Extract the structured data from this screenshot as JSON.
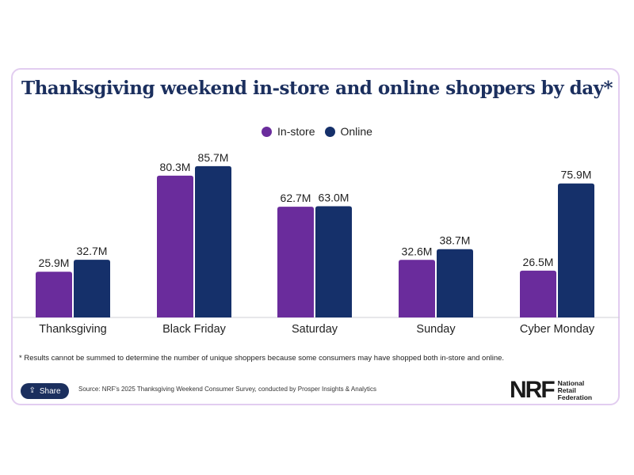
{
  "title": "Thanksgiving weekend in-store and online shoppers by day*",
  "legend": {
    "instore_label": "In-store",
    "online_label": "Online"
  },
  "colors": {
    "instore": "#6a2c9c",
    "online": "#15306a",
    "card_border": "#e2cdf0"
  },
  "chart_data": {
    "type": "bar",
    "categories": [
      "Thanksgiving",
      "Black Friday",
      "Saturday",
      "Sunday",
      "Cyber Monday"
    ],
    "series": [
      {
        "name": "In-store",
        "values": [
          25.9,
          80.3,
          62.7,
          32.6,
          26.5
        ],
        "labels": [
          "25.9M",
          "80.3M",
          "62.7M",
          "32.6M",
          "26.5M"
        ]
      },
      {
        "name": "Online",
        "values": [
          32.7,
          85.7,
          63.0,
          38.7,
          75.9
        ],
        "labels": [
          "32.7M",
          "85.7M",
          "63.0M",
          "38.7M",
          "75.9M"
        ]
      }
    ],
    "title": "Thanksgiving weekend in-store and online shoppers by day*",
    "xlabel": "",
    "ylabel": "",
    "ylim": [
      0,
      100
    ],
    "grid": false,
    "legend_position": "top-center"
  },
  "footnote": "* Results cannot be summed to determine the number of unique shoppers because some consumers may have shopped both in-store and online.",
  "share_label": "Share",
  "source": "Source: NRF's 2025 Thanksgiving Weekend Consumer Survey, conducted by Prosper Insights & Analytics",
  "logo": {
    "mark": "NRF",
    "line1": "National",
    "line2": "Retail",
    "line3": "Federation"
  }
}
